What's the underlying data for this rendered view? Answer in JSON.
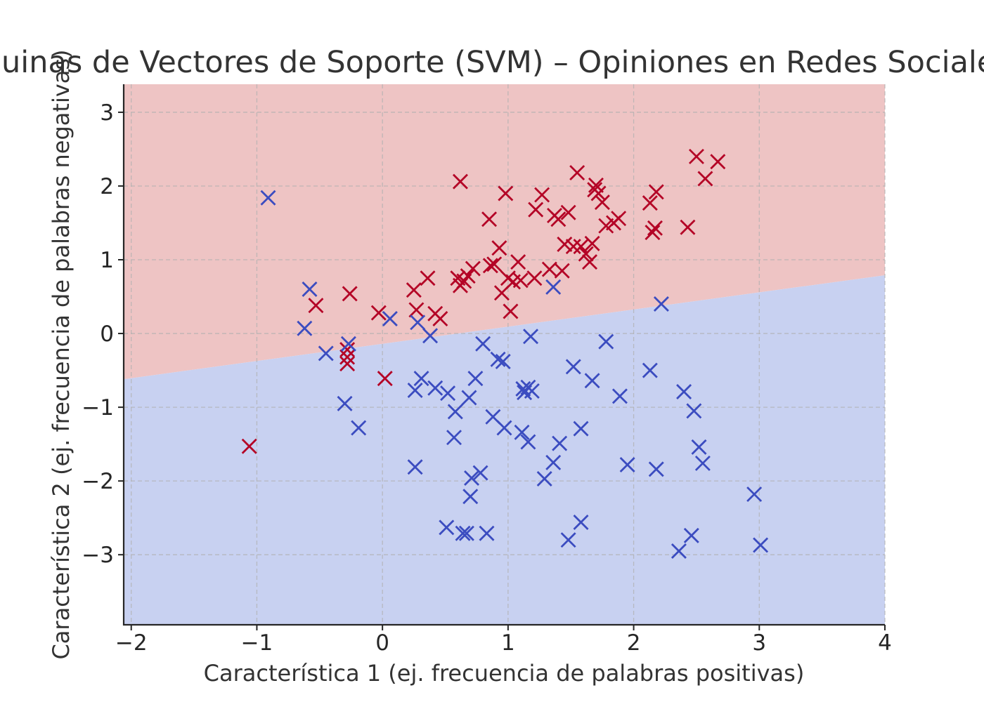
{
  "chart_data": {
    "type": "scatter",
    "title": "Máquinas de Vectores de Soporte (SVM) – Opiniones en Redes Sociales",
    "xlabel": "Característica 1 (ej. frecuencia de palabras positivas)",
    "ylabel": "Característica 2 (ej. frecuencia de palabras negativas)",
    "xlim": [
      -2.06,
      4.0
    ],
    "ylim": [
      -3.95,
      3.38
    ],
    "xticks": [
      -2,
      -1,
      0,
      1,
      2,
      3,
      4
    ],
    "yticks": [
      -3,
      -2,
      -1,
      0,
      1,
      2,
      3
    ],
    "xtick_labels": [
      "−2",
      "−1",
      "0",
      "1",
      "2",
      "3",
      "4"
    ],
    "ytick_labels": [
      "−3",
      "−2",
      "−1",
      "0",
      "1",
      "2",
      "3"
    ],
    "grid": true,
    "marker": "x",
    "decision_boundary": {
      "x": [
        -2.06,
        4.0
      ],
      "y": [
        -0.62,
        0.79
      ]
    },
    "regions": {
      "upper_color": "#eec4c4",
      "lower_color": "#c8d1f1"
    },
    "series": [
      {
        "color": "#b40426",
        "points": [
          [
            -1.06,
            -1.53
          ],
          [
            -0.53,
            0.38
          ],
          [
            -0.26,
            0.54
          ],
          [
            -0.28,
            -0.22
          ],
          [
            -0.28,
            -0.32
          ],
          [
            -0.28,
            -0.41
          ],
          [
            -0.03,
            0.28
          ],
          [
            0.02,
            -0.61
          ],
          [
            0.25,
            0.59
          ],
          [
            0.27,
            0.32
          ],
          [
            0.36,
            0.75
          ],
          [
            0.42,
            0.27
          ],
          [
            0.46,
            0.2
          ],
          [
            0.62,
            2.06
          ],
          [
            0.6,
            0.75
          ],
          [
            0.62,
            0.65
          ],
          [
            0.65,
            0.71
          ],
          [
            0.68,
            0.78
          ],
          [
            0.72,
            0.88
          ],
          [
            0.85,
            1.55
          ],
          [
            0.86,
            0.92
          ],
          [
            0.89,
            0.94
          ],
          [
            0.93,
            1.16
          ],
          [
            0.95,
            0.55
          ],
          [
            0.98,
            1.9
          ],
          [
            1.0,
            0.75
          ],
          [
            1.02,
            0.3
          ],
          [
            1.04,
            0.7
          ],
          [
            1.08,
            0.97
          ],
          [
            1.1,
            0.72
          ],
          [
            1.21,
            0.75
          ],
          [
            1.22,
            1.68
          ],
          [
            1.27,
            1.88
          ],
          [
            1.33,
            0.87
          ],
          [
            1.37,
            1.6
          ],
          [
            1.4,
            1.55
          ],
          [
            1.43,
            0.85
          ],
          [
            1.45,
            1.21
          ],
          [
            1.48,
            1.64
          ],
          [
            1.52,
            1.18
          ],
          [
            1.55,
            2.18
          ],
          [
            1.58,
            1.18
          ],
          [
            1.62,
            1.08
          ],
          [
            1.65,
            0.97
          ],
          [
            1.67,
            1.22
          ],
          [
            1.69,
            1.95
          ],
          [
            1.7,
            2.01
          ],
          [
            1.72,
            1.9
          ],
          [
            1.75,
            1.78
          ],
          [
            1.78,
            1.46
          ],
          [
            1.84,
            1.5
          ],
          [
            1.88,
            1.56
          ],
          [
            2.13,
            1.77
          ],
          [
            2.15,
            1.37
          ],
          [
            2.17,
            1.43
          ],
          [
            2.18,
            1.92
          ],
          [
            2.43,
            1.44
          ],
          [
            2.5,
            2.4
          ],
          [
            2.57,
            2.1
          ],
          [
            2.67,
            2.33
          ]
        ]
      },
      {
        "color": "#3b4cc0",
        "points": [
          [
            -0.91,
            1.84
          ],
          [
            -0.58,
            0.6
          ],
          [
            -0.62,
            0.07
          ],
          [
            -0.45,
            -0.27
          ],
          [
            -0.27,
            -0.14
          ],
          [
            -0.3,
            -0.95
          ],
          [
            -0.19,
            -1.28
          ],
          [
            0.06,
            0.2
          ],
          [
            0.28,
            0.15
          ],
          [
            0.31,
            -0.61
          ],
          [
            0.26,
            -0.77
          ],
          [
            0.26,
            -1.81
          ],
          [
            0.38,
            -0.03
          ],
          [
            0.42,
            -0.74
          ],
          [
            0.52,
            -0.81
          ],
          [
            0.58,
            -1.06
          ],
          [
            0.57,
            -1.41
          ],
          [
            0.51,
            -2.63
          ],
          [
            0.64,
            -2.71
          ],
          [
            0.67,
            -2.71
          ],
          [
            0.69,
            -0.87
          ],
          [
            0.74,
            -0.61
          ],
          [
            0.71,
            -1.96
          ],
          [
            0.78,
            -1.89
          ],
          [
            0.7,
            -2.21
          ],
          [
            0.8,
            -0.14
          ],
          [
            0.83,
            -2.71
          ],
          [
            0.88,
            -1.13
          ],
          [
            0.92,
            -0.35
          ],
          [
            0.96,
            -0.38
          ],
          [
            0.97,
            -1.28
          ],
          [
            1.12,
            -0.75
          ],
          [
            1.13,
            -0.8
          ],
          [
            1.16,
            -0.73
          ],
          [
            1.19,
            -0.78
          ],
          [
            1.18,
            -0.04
          ],
          [
            1.11,
            -1.34
          ],
          [
            1.16,
            -1.47
          ],
          [
            1.29,
            -1.97
          ],
          [
            1.36,
            -1.75
          ],
          [
            1.36,
            0.63
          ],
          [
            1.41,
            -1.49
          ],
          [
            1.52,
            -0.45
          ],
          [
            1.48,
            -2.8
          ],
          [
            1.58,
            -1.29
          ],
          [
            1.58,
            -2.56
          ],
          [
            1.67,
            -0.64
          ],
          [
            1.78,
            -0.11
          ],
          [
            1.89,
            -0.85
          ],
          [
            1.95,
            -1.78
          ],
          [
            2.13,
            -0.5
          ],
          [
            2.18,
            -1.84
          ],
          [
            2.22,
            0.4
          ],
          [
            2.36,
            -2.95
          ],
          [
            2.4,
            -0.79
          ],
          [
            2.46,
            -2.74
          ],
          [
            2.48,
            -1.05
          ],
          [
            2.52,
            -1.54
          ],
          [
            2.55,
            -1.76
          ],
          [
            2.96,
            -2.18
          ],
          [
            3.01,
            -2.87
          ]
        ]
      }
    ]
  }
}
